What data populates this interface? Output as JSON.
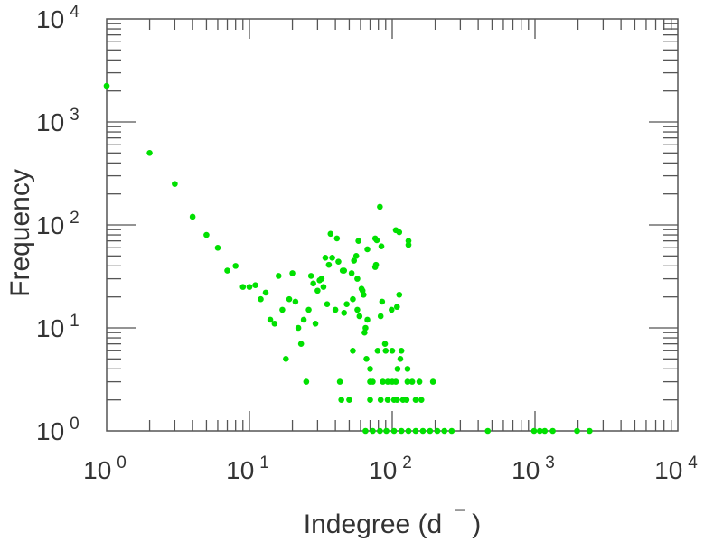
{
  "chart_data": {
    "type": "scatter",
    "title": "",
    "xlabel": "Indegree (d ¯)",
    "xlabel_main": "Indegree (d",
    "xlabel_sup": "¯",
    "xlabel_close": ")",
    "ylabel": "Frequency",
    "xscale": "log",
    "yscale": "log",
    "xlim": [
      1,
      10000
    ],
    "ylim": [
      1,
      10000
    ],
    "grid": false,
    "x_ticks": [
      {
        "base": "10",
        "exp": "0"
      },
      {
        "base": "10",
        "exp": "1"
      },
      {
        "base": "10",
        "exp": "2"
      },
      {
        "base": "10",
        "exp": "3"
      },
      {
        "base": "10",
        "exp": "4"
      }
    ],
    "y_ticks": [
      {
        "base": "10",
        "exp": "0"
      },
      {
        "base": "10",
        "exp": "1"
      },
      {
        "base": "10",
        "exp": "2"
      },
      {
        "base": "10",
        "exp": "3"
      },
      {
        "base": "10",
        "exp": "4"
      }
    ],
    "marker_color": "#00e000",
    "points": [
      [
        1,
        2240
      ],
      [
        2,
        500
      ],
      [
        3,
        250
      ],
      [
        4,
        120
      ],
      [
        5,
        80
      ],
      [
        6,
        60
      ],
      [
        7,
        36
      ],
      [
        8,
        40
      ],
      [
        9,
        25
      ],
      [
        10,
        25
      ],
      [
        11,
        26
      ],
      [
        12,
        19
      ],
      [
        13,
        22
      ],
      [
        16,
        32
      ],
      [
        20,
        34
      ],
      [
        27,
        32
      ],
      [
        28,
        27
      ],
      [
        19,
        19
      ],
      [
        21,
        18
      ],
      [
        17,
        15
      ],
      [
        14,
        12
      ],
      [
        15,
        11
      ],
      [
        26,
        15
      ],
      [
        24,
        12
      ],
      [
        22,
        10
      ],
      [
        23,
        7
      ],
      [
        18,
        5
      ],
      [
        82,
        150
      ],
      [
        106,
        89
      ],
      [
        112,
        85
      ],
      [
        130,
        70
      ],
      [
        130,
        64
      ],
      [
        37,
        82
      ],
      [
        41,
        74
      ],
      [
        58,
        70
      ],
      [
        76,
        74
      ],
      [
        78,
        71
      ],
      [
        84,
        62
      ],
      [
        67,
        58
      ],
      [
        56,
        50
      ],
      [
        54,
        45
      ],
      [
        34,
        48
      ],
      [
        38,
        48
      ],
      [
        42,
        44
      ],
      [
        36,
        41
      ],
      [
        77,
        41
      ],
      [
        76,
        39
      ],
      [
        45,
        36
      ],
      [
        46,
        36
      ],
      [
        52,
        34
      ],
      [
        57,
        30
      ],
      [
        31,
        29
      ],
      [
        32,
        30
      ],
      [
        33,
        25
      ],
      [
        30,
        23
      ],
      [
        61,
        24
      ],
      [
        62,
        23
      ],
      [
        63,
        21
      ],
      [
        112,
        21
      ],
      [
        85,
        18
      ],
      [
        53,
        19
      ],
      [
        35,
        17
      ],
      [
        48,
        17
      ],
      [
        57,
        15
      ],
      [
        108,
        16
      ],
      [
        99,
        15
      ],
      [
        40,
        15
      ],
      [
        46,
        14
      ],
      [
        59,
        13
      ],
      [
        83,
        13
      ],
      [
        67,
        12
      ],
      [
        29,
        11
      ],
      [
        65,
        10
      ],
      [
        64,
        9
      ],
      [
        89,
        7
      ],
      [
        53,
        6
      ],
      [
        79,
        6
      ],
      [
        90,
        6
      ],
      [
        100,
        6
      ],
      [
        116,
        6
      ],
      [
        66,
        5
      ],
      [
        114,
        5
      ],
      [
        70,
        4
      ],
      [
        109,
        4
      ],
      [
        128,
        4
      ],
      [
        25,
        3
      ],
      [
        43,
        3
      ],
      [
        70,
        3
      ],
      [
        73,
        3
      ],
      [
        86,
        3
      ],
      [
        93,
        3
      ],
      [
        100,
        3
      ],
      [
        106,
        3
      ],
      [
        128,
        3
      ],
      [
        138,
        3
      ],
      [
        155,
        3
      ],
      [
        193,
        3
      ],
      [
        44,
        2
      ],
      [
        50,
        2
      ],
      [
        70,
        2
      ],
      [
        83,
        2
      ],
      [
        93,
        2
      ],
      [
        103,
        2
      ],
      [
        108,
        2
      ],
      [
        119,
        2
      ],
      [
        126,
        2
      ],
      [
        146,
        2
      ],
      [
        160,
        2
      ],
      [
        65,
        1
      ],
      [
        73,
        1
      ],
      [
        82,
        1
      ],
      [
        91,
        1
      ],
      [
        103,
        1
      ],
      [
        116,
        1
      ],
      [
        130,
        1
      ],
      [
        146,
        1
      ],
      [
        164,
        1
      ],
      [
        184,
        1
      ],
      [
        207,
        1
      ],
      [
        232,
        1
      ],
      [
        261,
        1
      ],
      [
        467,
        1
      ],
      [
        985,
        1
      ],
      [
        1080,
        1
      ],
      [
        1170,
        1
      ],
      [
        1330,
        1
      ],
      [
        1970,
        1
      ],
      [
        2410,
        1
      ]
    ]
  }
}
